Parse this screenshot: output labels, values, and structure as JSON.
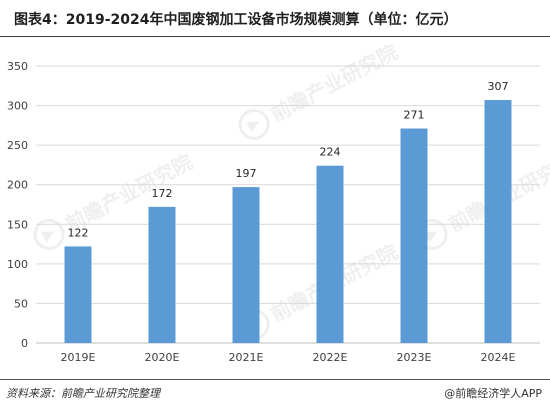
{
  "title": "图表4：2019-2024年中国废钢加工设备市场规模测算（单位：亿元）",
  "source": "资料来源：前瞻产业研究院整理",
  "credit": "@前瞻经济学人APP",
  "watermark": {
    "text": "前瞻产业研究院",
    "icon": "qianzhan-logo-icon"
  },
  "colors": {
    "bar": "#5b9bd5",
    "grid": "#d9d9d9",
    "axis": "#bfbfbf",
    "text": "#404040"
  },
  "chart_data": {
    "type": "bar",
    "categories": [
      "2019E",
      "2020E",
      "2021E",
      "2022E",
      "2023E",
      "2024E"
    ],
    "values": [
      122,
      172,
      197,
      224,
      271,
      307
    ],
    "title": "图表4：2019-2024年中国废钢加工设备市场规模测算（单位：亿元）",
    "xlabel": "",
    "ylabel": "",
    "ylim": [
      0,
      350
    ],
    "yticks": [
      0,
      50,
      100,
      150,
      200,
      250,
      300,
      350
    ],
    "grid": true,
    "data_labels": true,
    "legend": "none"
  }
}
